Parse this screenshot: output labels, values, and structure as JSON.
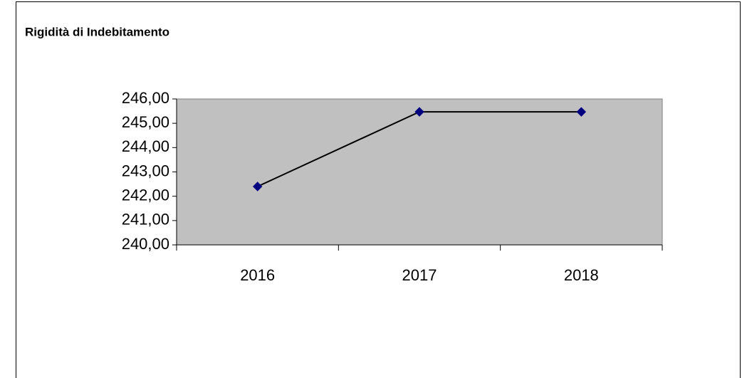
{
  "chart_data": {
    "type": "line",
    "title": "Rigidità di Indebitamento",
    "categories": [
      "2016",
      "2017",
      "2018"
    ],
    "series": [
      {
        "name": "Rigidità di Indebitamento",
        "color": "#000080",
        "values": [
          242.4,
          245.47,
          245.47
        ]
      }
    ],
    "ylim": [
      240,
      246
    ],
    "yticks": [
      {
        "value": 240,
        "label": "240,00"
      },
      {
        "value": 241,
        "label": "241,00"
      },
      {
        "value": 242,
        "label": "242,00"
      },
      {
        "value": 243,
        "label": "243,00"
      },
      {
        "value": 244,
        "label": "244,00"
      },
      {
        "value": 245,
        "label": "245,00"
      },
      {
        "value": 246,
        "label": "246,00"
      }
    ],
    "plot_background": "#c0c0c0"
  }
}
